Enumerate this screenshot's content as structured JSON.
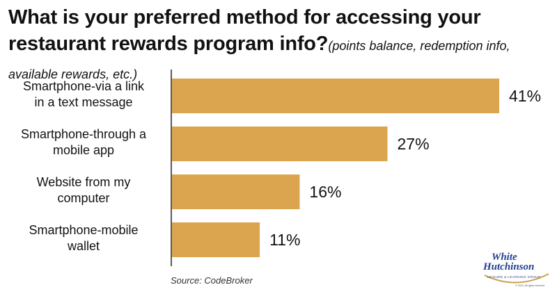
{
  "title": "What is your preferred method for accessing your restaurant rewards program info?",
  "subtitle": "(points balance, redemption info, available rewards, etc.)",
  "source": "Source: CodeBroker",
  "logo": {
    "line1": "White",
    "line2": "Hutchinson",
    "tagline": "LEISURE & LEARNING GROUP",
    "copyright": "© 2019, All rights reserved"
  },
  "colors": {
    "bar": "#DBA54F",
    "axis": "#222222",
    "text": "#111111",
    "logo_blue": "#1f3f8f",
    "logo_gold": "#c9a24a"
  },
  "chart_data": {
    "type": "bar",
    "orientation": "horizontal",
    "categories": [
      [
        "Smartphone-via a link",
        "in a text message"
      ],
      [
        "Smartphone-through a",
        "mobile app"
      ],
      [
        "Website from my",
        "computer"
      ],
      [
        "Smartphone-mobile",
        "wallet"
      ]
    ],
    "values": [
      41,
      27,
      16,
      11
    ],
    "value_labels": [
      "41%",
      "27%",
      "16%",
      "11%"
    ],
    "unit": "%",
    "xlim": [
      0,
      43
    ],
    "grid": false,
    "legend": "none"
  }
}
